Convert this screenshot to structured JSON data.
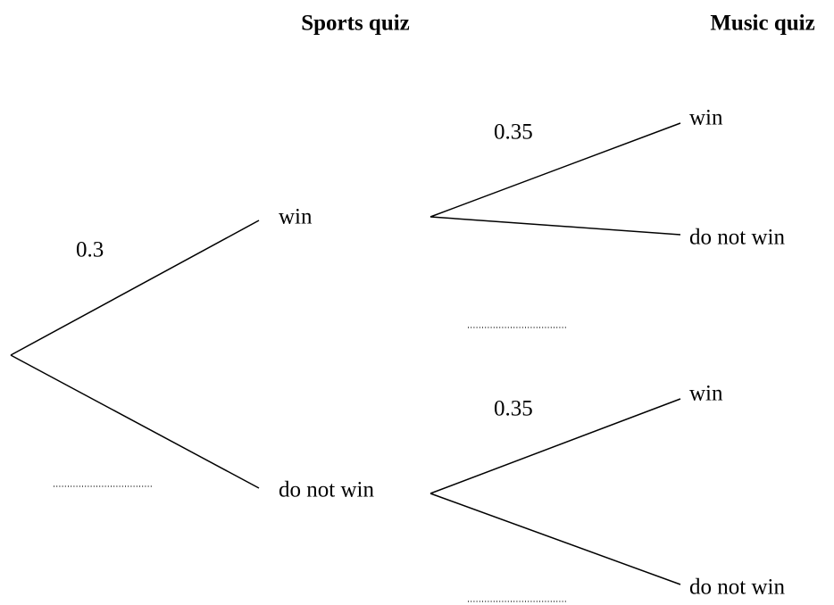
{
  "headers": [
    "Sports quiz",
    "Music quiz"
  ],
  "sports_nodes": [
    "win",
    "do not win"
  ],
  "music_nodes": [
    "win",
    "do not win",
    "win",
    "do not win"
  ],
  "probabilities": [
    0.3,
    0.35,
    0.35
  ]
}
